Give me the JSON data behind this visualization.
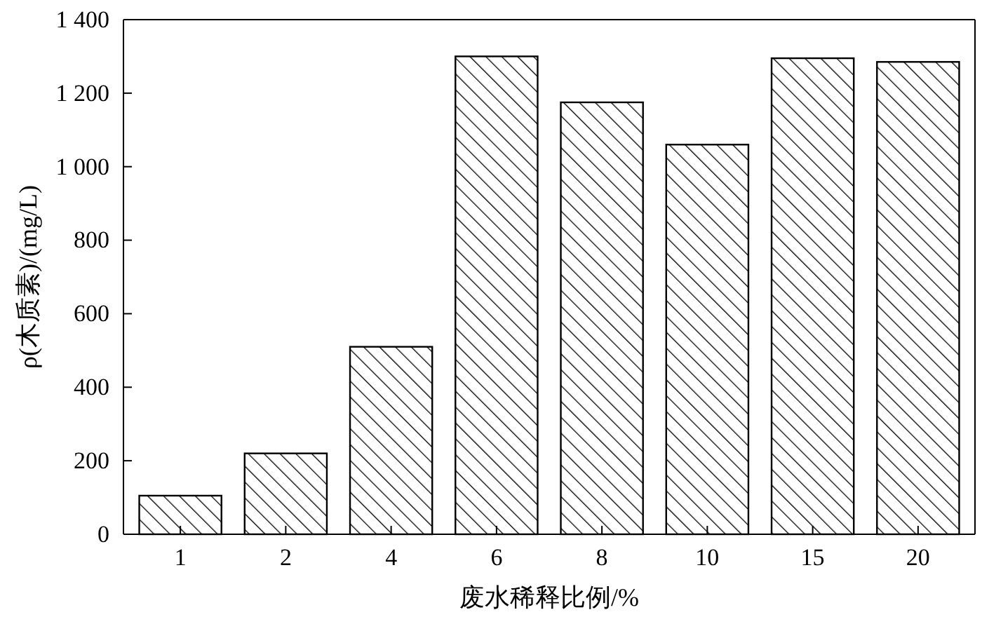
{
  "chart_data": {
    "type": "bar",
    "xlabel": "废水稀释比例/%",
    "ylabel": "ρ(木质素)/(mg/L)",
    "categories": [
      "1",
      "2",
      "4",
      "6",
      "8",
      "10",
      "15",
      "20"
    ],
    "values": [
      105,
      220,
      510,
      1300,
      1175,
      1060,
      1295,
      1285
    ],
    "color": "#000000",
    "ylim": [
      0,
      1400
    ],
    "yticks": [
      0,
      200,
      400,
      600,
      800,
      {
        "value": 1000,
        "label": "1 000"
      },
      {
        "value": 1200,
        "label": "1 200"
      },
      {
        "value": 1400,
        "label": "1 400"
      }
    ],
    "grid": false
  }
}
